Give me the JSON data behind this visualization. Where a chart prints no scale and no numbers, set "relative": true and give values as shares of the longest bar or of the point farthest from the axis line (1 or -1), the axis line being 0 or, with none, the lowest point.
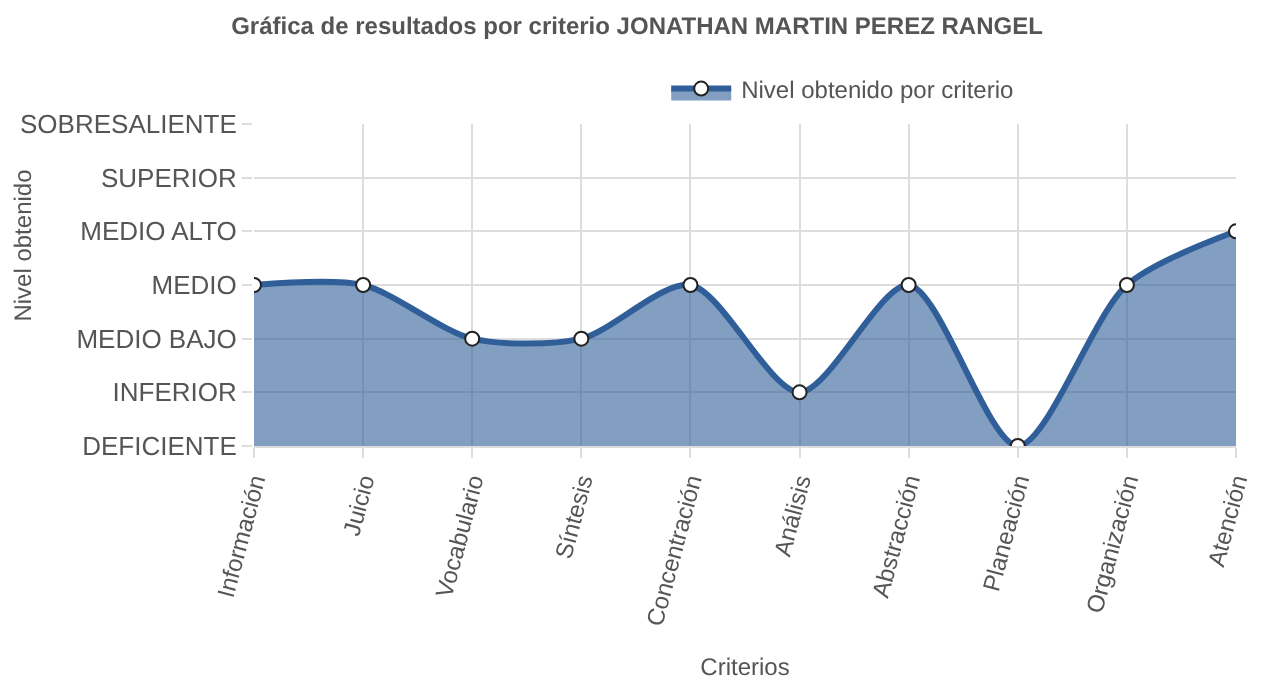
{
  "chart_data": {
    "type": "area",
    "title": "Gráfica de resultados por criterio JONATHAN MARTIN PEREZ RANGEL",
    "xlabel": "Criterios",
    "annotations": [
      "Nivel obtenido"
    ],
    "relative": true,
    "categories": [
      "Información",
      "Juicio",
      "Vocabulario",
      "Síntesis",
      "Concentración",
      "Análisis",
      "Abstracción",
      "Planeación",
      "Organización",
      "Atención"
    ],
    "y_categories": [
      "SOBRESALIENTE",
      "SUPERIOR",
      "MEDIO ALTO",
      "MEDIO",
      "MEDIO BAJO",
      "INFERIOR",
      "DEFICIENTE"
    ],
    "series": [
      {
        "name": "Nivel obtenido por criterio",
        "color": "#2f5e98",
        "values": [
          0.75,
          0.75,
          0.5,
          0.5,
          0.75,
          0.25,
          0.75,
          0,
          0.75,
          1
        ]
      }
    ],
    "grid": true,
    "legend": "top",
    "marker": "circle"
  }
}
